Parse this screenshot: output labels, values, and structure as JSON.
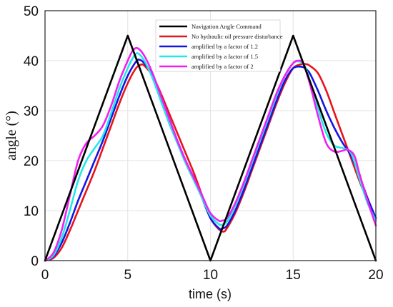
{
  "chart_data": {
    "type": "line",
    "xlabel": "time (s)",
    "ylabel": "angle (°)",
    "xlim": [
      0,
      20
    ],
    "ylim": [
      0,
      50
    ],
    "xticks": [
      0,
      5,
      10,
      15,
      20
    ],
    "yticks": [
      0,
      10,
      20,
      30,
      40,
      50
    ],
    "grid": true,
    "legend_position": "top-right",
    "series": [
      {
        "name": "Navigation Angle Command",
        "color": "#000000",
        "x": [
          0,
          5,
          10,
          15,
          20
        ],
        "y": [
          0,
          45,
          0,
          45,
          0
        ]
      },
      {
        "name": "No hydraulic oil pressure disturbance",
        "color": "#e8141b",
        "x": [
          0,
          0.5,
          1,
          1.5,
          2,
          2.5,
          3,
          3.5,
          4,
          4.5,
          5,
          5.5,
          5.8,
          6,
          6.5,
          7,
          7.5,
          8,
          8.5,
          9,
          9.5,
          10,
          10.5,
          10.8,
          11,
          11.5,
          12,
          12.5,
          13,
          13.5,
          14,
          14.5,
          15,
          15.5,
          15.8,
          16,
          16.5,
          17,
          17.5,
          18,
          18.5,
          19,
          19.5,
          20
        ],
        "y": [
          0,
          0.5,
          2.5,
          6,
          10,
          14,
          18,
          22.5,
          27,
          31.5,
          35.5,
          38.5,
          39.2,
          39,
          37,
          33.5,
          29.5,
          25.5,
          21.5,
          17.5,
          13,
          8.5,
          6.3,
          5.8,
          6.5,
          9.5,
          13.5,
          18,
          22.5,
          27,
          31.5,
          35.5,
          38.5,
          39.3,
          39.3,
          39,
          37.5,
          34,
          29.5,
          25,
          20.5,
          16,
          12,
          8
        ]
      },
      {
        "name": "amplified by a factor of 1.2",
        "color": "#1515e0",
        "x": [
          0,
          0.5,
          1,
          1.5,
          2,
          2.5,
          3,
          3.5,
          4,
          4.5,
          5,
          5.5,
          5.7,
          6,
          6.5,
          7,
          7.5,
          8,
          8.5,
          9,
          9.5,
          10,
          10.5,
          10.7,
          11,
          11.5,
          12,
          12.5,
          13,
          13.5,
          14,
          14.5,
          15,
          15.5,
          15.7,
          16,
          16.5,
          17,
          17.5,
          18,
          18.5,
          19,
          19.5,
          20
        ],
        "y": [
          0,
          0.8,
          3.5,
          7.5,
          12,
          16,
          20,
          24,
          28.5,
          33,
          37,
          39.8,
          40.2,
          39.5,
          37,
          33,
          28.5,
          24,
          20,
          16.5,
          12.5,
          8.5,
          6.5,
          6.4,
          7,
          10,
          14,
          18.5,
          23,
          27.5,
          32,
          36,
          38.5,
          38.8,
          38.5,
          37.5,
          34,
          30,
          26.5,
          23.5,
          21,
          17,
          12.5,
          8.5
        ]
      },
      {
        "name": "amplified by a factor of 1.5",
        "color": "#22e8e8",
        "x": [
          0,
          0.5,
          1,
          1.5,
          2,
          2.5,
          3,
          3.5,
          4,
          4.5,
          5,
          5.3,
          5.6,
          6,
          6.5,
          7,
          7.5,
          8,
          8.5,
          9,
          9.5,
          10,
          10.5,
          10.7,
          11,
          11.5,
          12,
          12.5,
          13,
          13.5,
          14,
          14.5,
          15,
          15.4,
          15.7,
          16,
          16.5,
          17,
          17.5,
          18,
          18.5,
          19,
          19.5,
          20
        ],
        "y": [
          0,
          1,
          4.5,
          10,
          16,
          20,
          22.5,
          25,
          29.5,
          34.5,
          38.5,
          40.5,
          41.5,
          40,
          36.5,
          32,
          27.5,
          23.5,
          19.5,
          16,
          12.5,
          9,
          7.3,
          7.2,
          7.8,
          11,
          15,
          19.5,
          24,
          28.5,
          33,
          37,
          39.5,
          39.8,
          39,
          36,
          30.5,
          25.5,
          23,
          22.5,
          21.5,
          16.5,
          11.5,
          8
        ]
      },
      {
        "name": "amplified by a factor of 2",
        "color": "#f21ef2",
        "x": [
          0,
          0.5,
          1,
          1.5,
          2,
          2.5,
          3,
          3.5,
          4,
          4.5,
          5,
          5.3,
          5.6,
          6,
          6.5,
          7,
          7.5,
          8,
          8.5,
          9,
          9.5,
          10,
          10.5,
          10.7,
          11,
          11.5,
          12,
          12.5,
          13,
          13.5,
          14,
          14.5,
          15,
          15.3,
          15.6,
          16,
          16.5,
          17,
          17.5,
          18,
          18.3,
          18.7,
          19,
          19.5,
          20
        ],
        "y": [
          0,
          1.5,
          6,
          13,
          20,
          23.5,
          25,
          27,
          31,
          36,
          40,
          42,
          42.5,
          41,
          37.5,
          33,
          28.5,
          24,
          20,
          16.5,
          13,
          9.5,
          8,
          8,
          8.5,
          11.5,
          15.5,
          20,
          24.5,
          29,
          33.5,
          37,
          39.5,
          40,
          39.5,
          35.5,
          29,
          23.5,
          21.8,
          22,
          22.2,
          21,
          17.5,
          12,
          7
        ]
      }
    ]
  }
}
